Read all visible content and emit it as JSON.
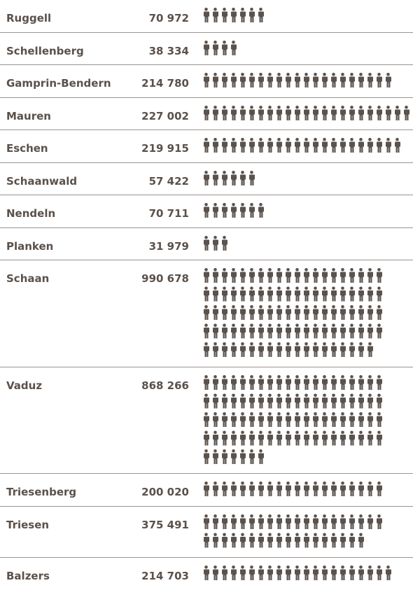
{
  "chart_data": {
    "type": "pictogram",
    "categories": [
      "Ruggell",
      "Schellenberg",
      "Gamprin-Bendern",
      "Mauren",
      "Eschen",
      "Schaanwald",
      "Nendeln",
      "Planken",
      "Schaan",
      "Vaduz",
      "Triesenberg",
      "Triesen",
      "Balzers"
    ],
    "values": [
      70972,
      38334,
      214780,
      227002,
      219915,
      57422,
      70711,
      31979,
      990678,
      868266,
      200020,
      375491,
      214703
    ],
    "value_labels": [
      "70 972",
      "38 334",
      "214 780",
      "227 002",
      "219 915",
      "57 422",
      "70 711",
      "31 979",
      "990 678",
      "868 266",
      "200 020",
      "375 491",
      "214 703"
    ],
    "color": "#5a524d"
  }
}
